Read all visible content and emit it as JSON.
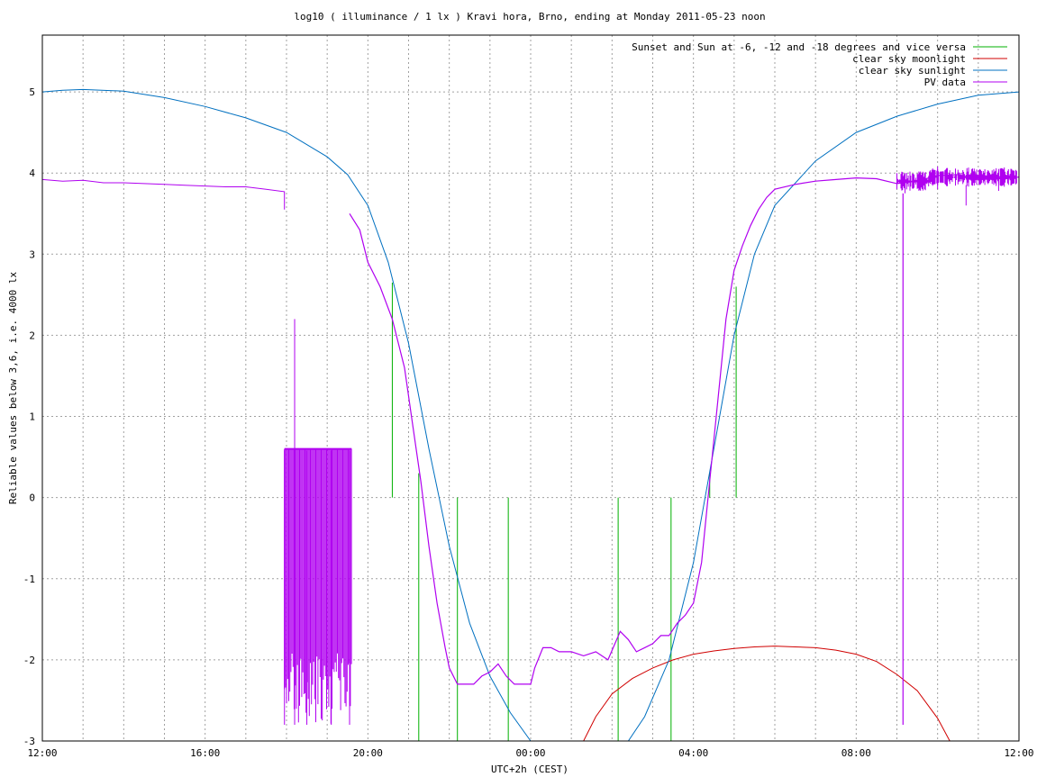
{
  "chart_data": {
    "type": "line",
    "title": "log10 ( illuminance / 1 lx ) Kravi hora, Brno, ending at Monday 2011-05-23 noon",
    "xlabel": "UTC+2h (CEST)",
    "ylabel": "Reliable values below 3,6, i.e. 4000 lx",
    "xlim": [
      12,
      36
    ],
    "ylim": [
      -3,
      5.7
    ],
    "grid": true,
    "legend_position": "top-right",
    "x_ticks": [
      {
        "v": 12,
        "label": "12:00"
      },
      {
        "v": 16,
        "label": "16:00"
      },
      {
        "v": 20,
        "label": "20:00"
      },
      {
        "v": 24,
        "label": "00:00"
      },
      {
        "v": 28,
        "label": "04:00"
      },
      {
        "v": 32,
        "label": "08:00"
      },
      {
        "v": 36,
        "label": "12:00"
      }
    ],
    "y_ticks": [
      {
        "v": 5,
        "label": "5"
      },
      {
        "v": 4,
        "label": "4"
      },
      {
        "v": 3,
        "label": "3"
      },
      {
        "v": 2,
        "label": "2"
      },
      {
        "v": 1,
        "label": "1"
      },
      {
        "v": 0,
        "label": "0"
      },
      {
        "v": -1,
        "label": "-1"
      },
      {
        "v": -2,
        "label": "-2"
      },
      {
        "v": -3,
        "label": "-3"
      }
    ],
    "series": [
      {
        "name": "Sunset and Sun at -6, -12 and -18 degrees and vice versa",
        "color": "#00b000",
        "kind": "vlines",
        "lines": [
          [
            20.6,
            0,
            2.65
          ],
          [
            21.25,
            -3,
            0.3
          ],
          [
            22.2,
            -3,
            0
          ],
          [
            23.45,
            -3,
            0
          ],
          [
            26.15,
            -3,
            0
          ],
          [
            27.45,
            -3,
            0
          ],
          [
            28.4,
            0,
            0.3
          ],
          [
            29.05,
            0,
            2.6
          ]
        ]
      },
      {
        "name": "clear sky moonlight",
        "color": "#d00000",
        "kind": "line",
        "x": [
          25.3,
          25.6,
          26.0,
          26.5,
          27.0,
          27.5,
          28.0,
          28.5,
          29.0,
          29.5,
          30.0,
          30.5,
          31.0,
          31.5,
          32.0,
          32.5,
          33.0,
          33.5,
          34.0,
          34.3
        ],
        "y": [
          -3.0,
          -2.7,
          -2.42,
          -2.23,
          -2.1,
          -2.0,
          -1.93,
          -1.89,
          -1.86,
          -1.84,
          -1.83,
          -1.84,
          -1.85,
          -1.88,
          -1.93,
          -2.02,
          -2.18,
          -2.38,
          -2.72,
          -3.0
        ]
      },
      {
        "name": "clear sky sunlight",
        "color": "#0070c0",
        "kind": "line",
        "x": [
          12,
          12.5,
          13,
          14,
          15,
          16,
          17,
          18,
          19,
          19.5,
          20,
          20.5,
          21,
          21.5,
          22,
          22.5,
          23,
          23.5,
          24,
          25,
          26.4,
          26.8,
          27.4,
          28,
          28.5,
          29,
          29.5,
          30,
          31,
          32,
          33,
          34,
          35,
          36
        ],
        "y": [
          5.0,
          5.02,
          5.03,
          5.01,
          4.93,
          4.82,
          4.68,
          4.5,
          4.2,
          3.98,
          3.6,
          2.9,
          1.9,
          0.6,
          -0.6,
          -1.55,
          -2.2,
          -2.65,
          -3.0,
          -3.3,
          -3.0,
          -2.7,
          -2.0,
          -0.8,
          0.6,
          2.0,
          3.0,
          3.6,
          4.15,
          4.5,
          4.7,
          4.85,
          4.96,
          5.0
        ]
      },
      {
        "name": "PV data",
        "color": "#b000f0",
        "kind": "line",
        "x": [
          12.0,
          12.5,
          13.0,
          13.5,
          14.0,
          14.5,
          15.0,
          15.5,
          16.0,
          16.5,
          17.0,
          17.5,
          17.95,
          17.95
        ],
        "y": [
          3.92,
          3.9,
          3.91,
          3.88,
          3.88,
          3.87,
          3.86,
          3.85,
          3.84,
          3.83,
          3.83,
          3.8,
          3.77,
          3.55
        ],
        "x2": [
          19.55,
          19.8,
          20.0,
          20.3,
          20.6,
          20.9,
          21.1,
          21.3,
          21.5,
          21.7,
          21.9,
          22.0,
          22.2,
          22.4,
          22.6,
          22.8,
          23.0,
          23.2,
          23.4,
          23.5,
          23.6,
          23.8,
          24.0,
          24.1,
          24.3,
          24.5,
          24.7,
          25.0,
          25.3,
          25.6,
          25.9,
          26.2,
          26.4,
          26.6,
          26.8,
          27.0,
          27.2,
          27.4,
          27.6,
          27.8,
          28.0,
          28.2,
          28.4,
          28.6,
          28.8,
          29.0,
          29.2,
          29.4,
          29.6,
          29.8,
          30.0,
          30.5,
          31.0,
          31.5,
          32.0,
          32.5,
          33.0,
          33.5,
          34.0,
          34.5,
          35.0,
          35.5,
          36.0
        ],
        "y2": [
          3.5,
          3.3,
          2.9,
          2.6,
          2.2,
          1.6,
          0.9,
          0.2,
          -0.6,
          -1.3,
          -1.85,
          -2.1,
          -2.3,
          -2.3,
          -2.3,
          -2.2,
          -2.15,
          -2.05,
          -2.2,
          -2.25,
          -2.3,
          -2.3,
          -2.3,
          -2.1,
          -1.85,
          -1.85,
          -1.9,
          -1.9,
          -1.95,
          -1.9,
          -2.0,
          -1.65,
          -1.75,
          -1.9,
          -1.85,
          -1.8,
          -1.7,
          -1.7,
          -1.55,
          -1.45,
          -1.3,
          -0.8,
          0.2,
          1.2,
          2.2,
          2.8,
          3.1,
          3.35,
          3.55,
          3.7,
          3.8,
          3.86,
          3.9,
          3.92,
          3.94,
          3.93,
          3.87,
          3.9,
          3.97,
          3.98,
          3.92,
          3.93,
          3.95
        ],
        "spikes": [
          [
            17.95,
            -2.8,
            0.58
          ],
          [
            18.2,
            -2.8,
            2.2
          ],
          [
            18.5,
            -2.8,
            0.58
          ],
          [
            19.1,
            -2.8,
            0.58
          ],
          [
            19.55,
            -2.8,
            0.58
          ],
          [
            33.2,
            3.75,
            3.9
          ],
          [
            34.0,
            3.8,
            4.08
          ],
          [
            35.5,
            3.78,
            4.05
          ],
          [
            34.7,
            3.6,
            3.85
          ]
        ],
        "vline": [
          33.15,
          -2.8,
          3.75
        ],
        "noise_block": [
          17.95,
          19.6,
          -2.8,
          0.6
        ]
      }
    ]
  }
}
